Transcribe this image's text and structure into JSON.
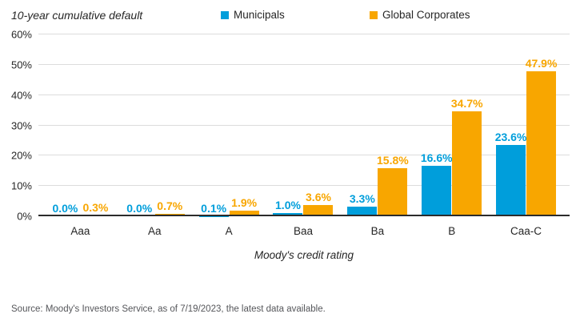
{
  "source": "Source: Moody's Investors Service, as of 7/19/2023, the latest data available.",
  "chart_data": {
    "type": "bar",
    "title": "10-year cumulative default",
    "categories": [
      "Aaa",
      "Aa",
      "A",
      "Baa",
      "Ba",
      "B",
      "Caa-C"
    ],
    "series": [
      {
        "name": "Municipals",
        "color": "#009EDB",
        "values": [
          0.0,
          0.0,
          0.1,
          1.0,
          3.3,
          16.6,
          23.6
        ],
        "labels": [
          "0.0%",
          "0.0%",
          "0.1%",
          "1.0%",
          "3.3%",
          "16.6%",
          "23.6%"
        ]
      },
      {
        "name": "Global Corporates",
        "color": "#F8A600",
        "values": [
          0.3,
          0.7,
          1.9,
          3.6,
          15.8,
          34.7,
          47.9
        ],
        "labels": [
          "0.3%",
          "0.7%",
          "1.9%",
          "3.6%",
          "15.8%",
          "34.7%",
          "47.9%"
        ]
      }
    ],
    "xlabel": "Moody's credit rating",
    "ylabel": "",
    "ylim": [
      0,
      60
    ],
    "ytick_step": 10,
    "ytick_labels": [
      "0%",
      "10%",
      "20%",
      "30%",
      "40%",
      "50%",
      "60%"
    ],
    "grid": true,
    "legend_position": "top"
  }
}
